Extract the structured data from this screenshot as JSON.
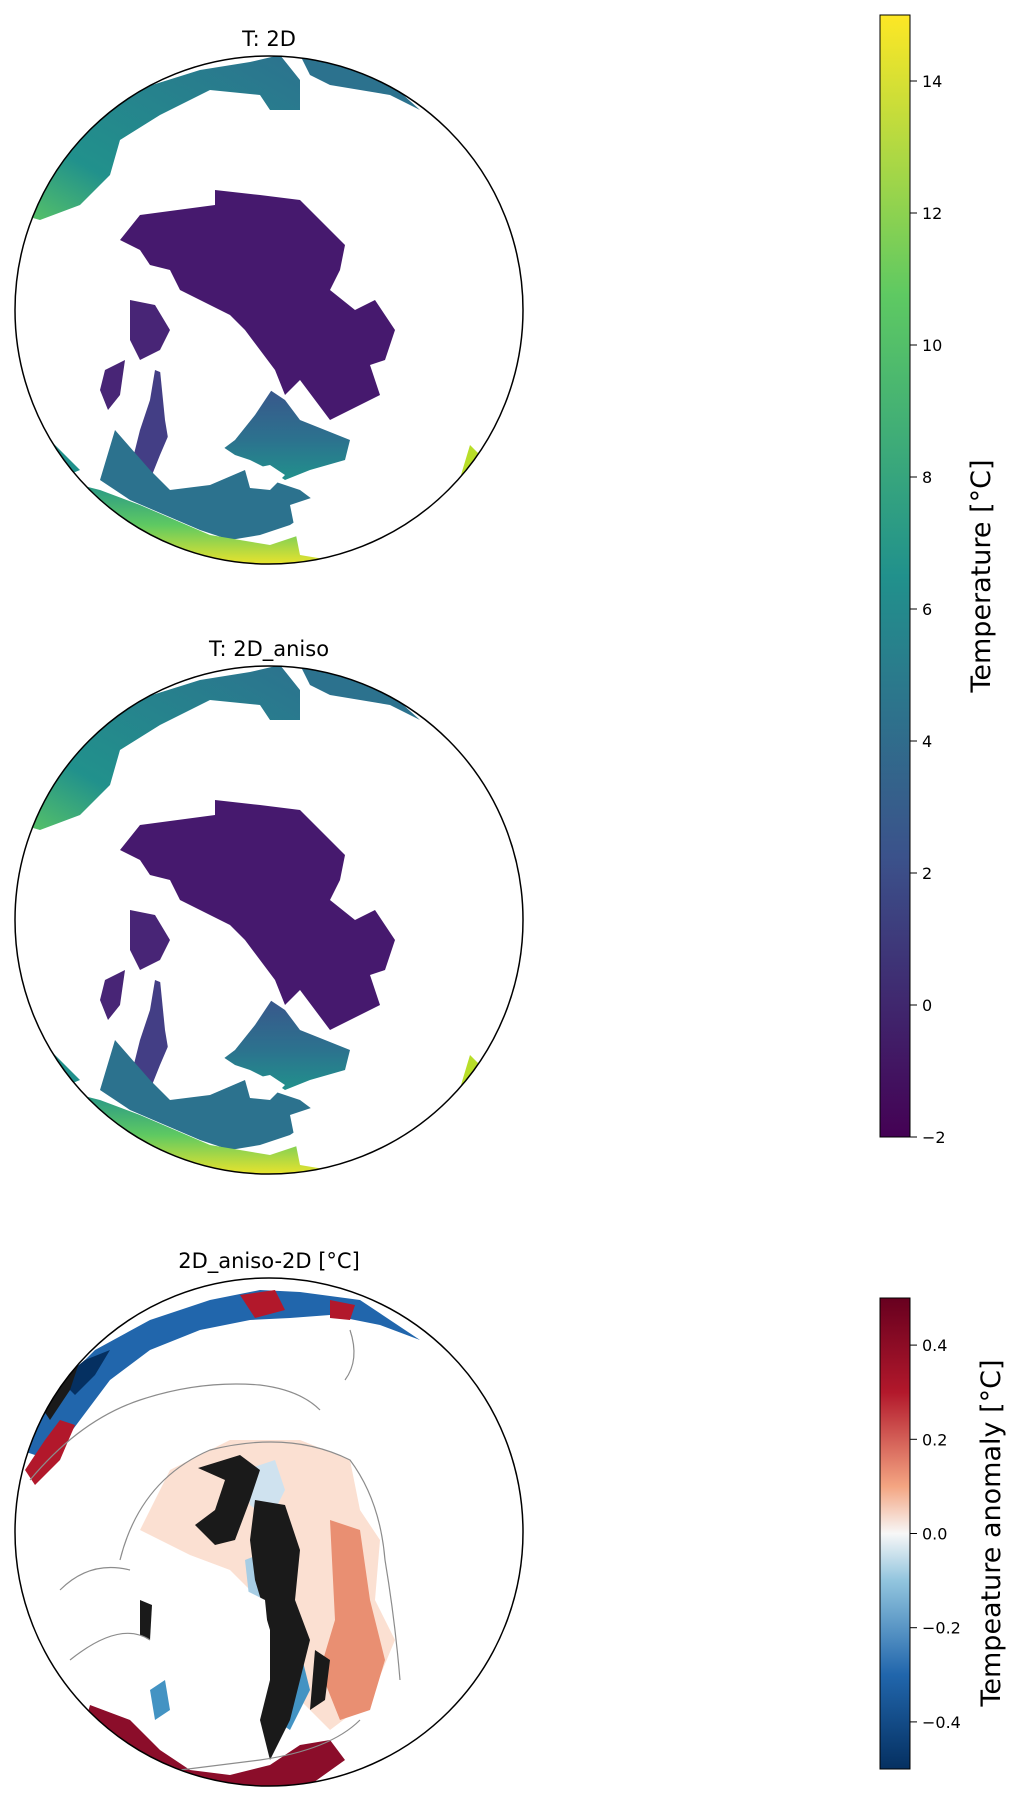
{
  "panels": [
    {
      "title": "T: 2D"
    },
    {
      "title": "T: 2D_aniso"
    },
    {
      "title": "2D_aniso-2D [°C]"
    }
  ],
  "colorbars": [
    {
      "label": "Temperature [°C]",
      "ticks": [
        "14",
        "12",
        "10",
        "8",
        "6",
        "4",
        "2",
        "0",
        "−2"
      ],
      "range": [
        -2,
        15
      ]
    },
    {
      "label": "Tempeature anomaly [°C]",
      "ticks": [
        "0.4",
        "0.2",
        "0.0",
        "−0.2",
        "−0.4"
      ],
      "range": [
        -0.5,
        0.5
      ]
    }
  ],
  "colors": {
    "viridis": [
      "#440154",
      "#3b528b",
      "#21918c",
      "#5ec962",
      "#fde725"
    ],
    "rdbu": [
      "#053061",
      "#2166ac",
      "#92c5de",
      "#f7f7f7",
      "#f4a582",
      "#b2182b",
      "#67001f"
    ]
  }
}
